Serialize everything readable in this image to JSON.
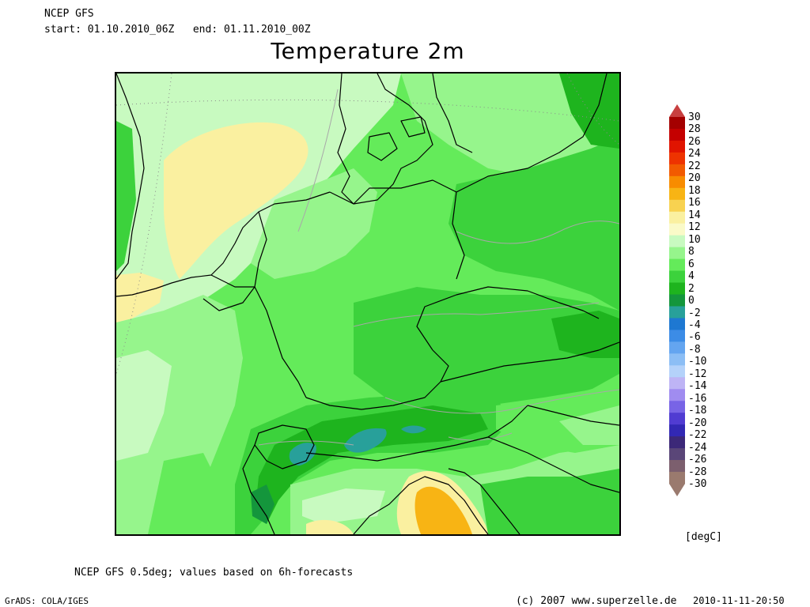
{
  "header": {
    "model": "NCEP GFS",
    "start_label": "start:",
    "start_value": "01.10.2010_06Z",
    "end_label": "end:",
    "end_value": "01.11.2010_00Z"
  },
  "title": "Temperature 2m",
  "legend": {
    "unit": "[degC]",
    "ticks": [
      "30",
      "28",
      "26",
      "24",
      "22",
      "20",
      "18",
      "16",
      "14",
      "12",
      "10",
      "8",
      "6",
      "4",
      "2",
      "0",
      "-2",
      "-4",
      "-6",
      "-8",
      "-10",
      "-12",
      "-14",
      "-16",
      "-18",
      "-20",
      "-22",
      "-24",
      "-26",
      "-28",
      "-30"
    ],
    "colors": [
      "#a40000",
      "#c40000",
      "#e01400",
      "#ee3300",
      "#f25a00",
      "#f88c00",
      "#f8b414",
      "#f8d250",
      "#faf0a0",
      "#fafac8",
      "#c8fac0",
      "#96f58c",
      "#64eb5a",
      "#3cd23c",
      "#1eb41e",
      "#14963c",
      "#28a09a",
      "#1e78d2",
      "#3c8ce6",
      "#64a5f0",
      "#8cbef5",
      "#b4d2fa",
      "#beb4f5",
      "#a08cf0",
      "#7864e6",
      "#503cd2",
      "#3228b4",
      "#3c2878",
      "#5a4678",
      "#7c5f6e",
      "#9a7a6e"
    ],
    "top_arrow_color": "#c84040",
    "bottom_arrow_color": "#9a7a6e"
  },
  "footer": {
    "source_note": "NCEP GFS 0.5deg; values based on 6h-forecasts",
    "grads": "GrADS: COLA/IGES",
    "copyright": "(c) 2007 www.superzelle.de",
    "timestamp": "2010-11-11-20:50"
  },
  "map": {
    "region": "Central Europe",
    "field": "2m temperature",
    "colors": {
      "light_yellow": "#fafac8",
      "yellow": "#faf0a0",
      "orange": "#f8b414",
      "pale_green": "#c8fac0",
      "light_green": "#96f58c",
      "green": "#64eb5a",
      "medium_green": "#3cd23c",
      "dark_green": "#1eb41e",
      "deep_green": "#14963c",
      "teal": "#28a09a"
    }
  }
}
